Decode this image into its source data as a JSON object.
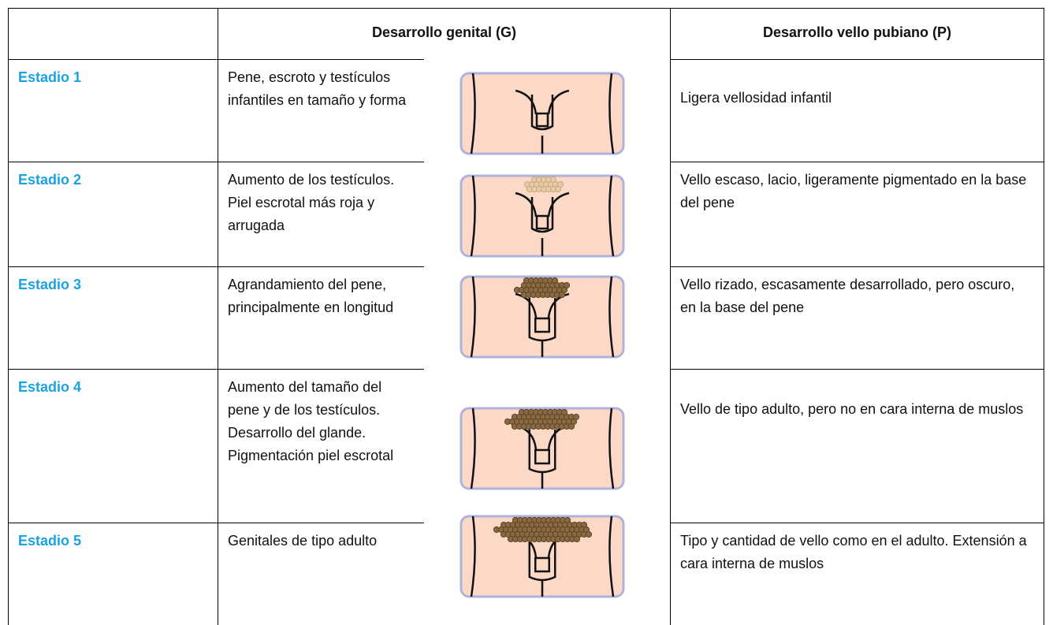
{
  "header": {
    "genital": "Desarrollo genital (G)",
    "pubic": "Desarrollo vello pubiano (P)"
  },
  "rows": [
    {
      "stage": "Estadio 1",
      "genital": "Pene, escroto y testículos infantiles en tamaño y forma",
      "pubic": "Ligera vellosidad infantil"
    },
    {
      "stage": "Estadio 2",
      "genital": "Aumento de los testículos. Piel escrotal más roja y arrugada",
      "pubic": "Vello escaso, lacio, ligeramente pigmentado en la base del pene"
    },
    {
      "stage": "Estadio 3",
      "genital": "Agrandamiento del pene, principalmente en longitud",
      "pubic": "Vello rizado, escasamente desarrollado, pero oscuro, en la base del pene"
    },
    {
      "stage": "Estadio 4",
      "genital": "Aumento del tamaño del pene y de los testículos. Desarrollo del glande. Pigmentación piel escrotal",
      "pubic": "Vello de tipo adulto, pero no en cara interna de muslos"
    },
    {
      "stage": "Estadio 5",
      "genital": "Genitales de tipo adulto",
      "pubic": "Tipo y cantidad de vello como en el adulto. Extensión a cara interna de muslos"
    }
  ]
}
